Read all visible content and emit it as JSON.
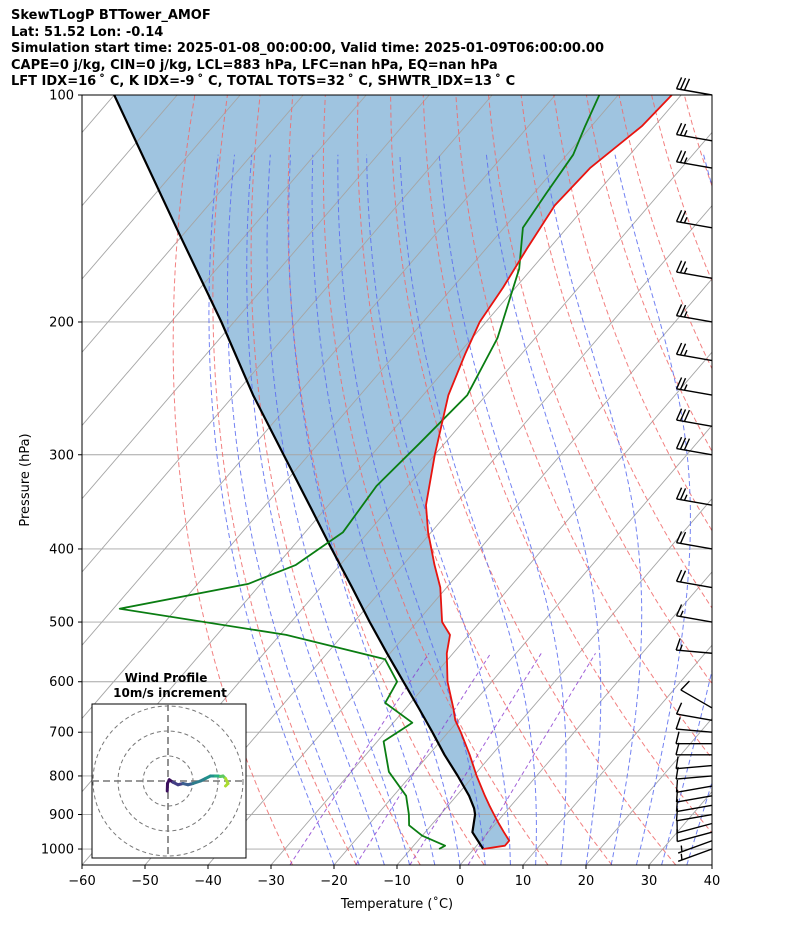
{
  "header": {
    "title": "SkewTLogP BTTower_AMOF",
    "location": "Lat: 51.52   Lon: -0.14",
    "times": "Simulation start time: 2025-01-08_00:00:00, Valid time: 2025-01-09T06:00:00.00",
    "indices1": "CAPE=0 j/kg, CIN=0 j/kg, LCL=883 hPa, LFC=nan hPa, EQ=nan hPa",
    "indices2": "LFT IDX=16 ˚ C, K IDX=-9 ˚ C, TOTAL TOTS=32 ˚ C, SHWTR_IDX=13 ˚ C"
  },
  "colors": {
    "temperature": "#e8140f",
    "dewpoint": "#0a7d12",
    "parcel": "#000000",
    "cape_fill": "#5f9ccb",
    "dry_adiabat": "#f06a6a",
    "moist_adiabat": "#5a6cf0",
    "mixing_ratio": "#8a3ad0",
    "isotherm": "#a5a5a5",
    "barb": "#000000"
  },
  "chart_data": [
    {
      "type": "skewt",
      "title": "SkewTLogP BTTower_AMOF",
      "xlabel": "Temperature (˚C)",
      "ylabel": "Pressure (hPa)",
      "xlim": [
        -60,
        40
      ],
      "ylim": [
        1050,
        100
      ],
      "x_ticks": [
        -60,
        -50,
        -40,
        -30,
        -20,
        -10,
        0,
        10,
        20,
        30,
        40
      ],
      "y_ticks": [
        1000,
        900,
        800,
        700,
        600,
        500,
        400,
        300,
        200,
        100
      ],
      "grid": true,
      "temperature": {
        "pressure": [
          1000,
          990,
          975,
          950,
          925,
          900,
          875,
          850,
          800,
          750,
          700,
          675,
          650,
          600,
          550,
          520,
          500,
          450,
          420,
          380,
          350,
          300,
          250,
          220,
          200,
          180,
          160,
          140,
          125,
          110,
          100
        ],
        "values": [
          1.5,
          4.5,
          4.5,
          2.5,
          0.5,
          -1.5,
          -3.5,
          -5.5,
          -9.5,
          -13.5,
          -18.0,
          -20.5,
          -22.5,
          -27.0,
          -31.0,
          -33.0,
          -36.0,
          -41.0,
          -45.0,
          -50.5,
          -54.5,
          -60.0,
          -66.0,
          -69.0,
          -71.0,
          -72.0,
          -73.5,
          -75.0,
          -74.5,
          -72.0,
          -71.5
        ]
      },
      "dewpoint": {
        "pressure": [
          1000,
          990,
          960,
          930,
          900,
          850,
          790,
          720,
          680,
          640,
          600,
          560,
          520,
          480,
          445,
          420,
          380,
          330,
          290,
          250,
          210,
          170,
          150,
          135,
          120,
          110,
          100
        ],
        "values": [
          -5.5,
          -5.0,
          -10.0,
          -13.5,
          -15.0,
          -18.0,
          -24.0,
          -29.0,
          -27.0,
          -34.0,
          -35.0,
          -40.0,
          -59.0,
          -89.0,
          -72.0,
          -67.0,
          -64.0,
          -65.0,
          -64.0,
          -63.0,
          -66.0,
          -72.0,
          -77.0,
          -78.0,
          -79.0,
          -81.0,
          -83.0
        ]
      },
      "parcel": {
        "pressure": [
          1000,
          950,
          900,
          883,
          850,
          800,
          750,
          700,
          650,
          600,
          550,
          500,
          450,
          400,
          350,
          300,
          250,
          200,
          150,
          100
        ],
        "values": [
          1.5,
          -2.5,
          -4.5,
          -5.5,
          -8.0,
          -12.5,
          -17.5,
          -22.5,
          -28.0,
          -34.0,
          -40.5,
          -47.5,
          -55.0,
          -63.5,
          -73.0,
          -84.0,
          -97.0,
          -112.0,
          -132.0,
          -160.0
        ]
      },
      "wind_barbs": {
        "pressure": [
          1000,
          975,
          950,
          925,
          900,
          875,
          850,
          825,
          800,
          775,
          750,
          725,
          700,
          675,
          650,
          550,
          500,
          450,
          400,
          350,
          300,
          275,
          250,
          225,
          200,
          175,
          150,
          125,
          115,
          100
        ],
        "speed_kt": [
          5,
          5,
          10,
          10,
          10,
          10,
          10,
          10,
          10,
          10,
          10,
          10,
          10,
          10,
          10,
          15,
          15,
          20,
          20,
          25,
          30,
          30,
          25,
          25,
          25,
          25,
          25,
          25,
          25,
          30
        ],
        "direction_deg": [
          250,
          250,
          255,
          255,
          260,
          260,
          260,
          260,
          265,
          265,
          270,
          270,
          275,
          280,
          300,
          275,
          280,
          280,
          280,
          280,
          280,
          280,
          280,
          280,
          280,
          280,
          280,
          280,
          280,
          280
        ]
      },
      "annotations": [
        "LCL=883 hPa"
      ]
    },
    {
      "type": "hodograph",
      "title": "Wind Profile",
      "subtitle": "10m/s increment",
      "rings_ms": [
        10,
        20,
        30
      ],
      "u": [
        -0.3,
        -0.2,
        0.5,
        2,
        4,
        6,
        8,
        10,
        13,
        15,
        17,
        19,
        20,
        21,
        22,
        23,
        24,
        23
      ],
      "v": [
        -4.0,
        -1.0,
        0.5,
        -0.5,
        -1.5,
        -1.0,
        -1.5,
        -1.0,
        0,
        1,
        2,
        2,
        2,
        1.8,
        2,
        1,
        -1,
        -2
      ]
    }
  ]
}
